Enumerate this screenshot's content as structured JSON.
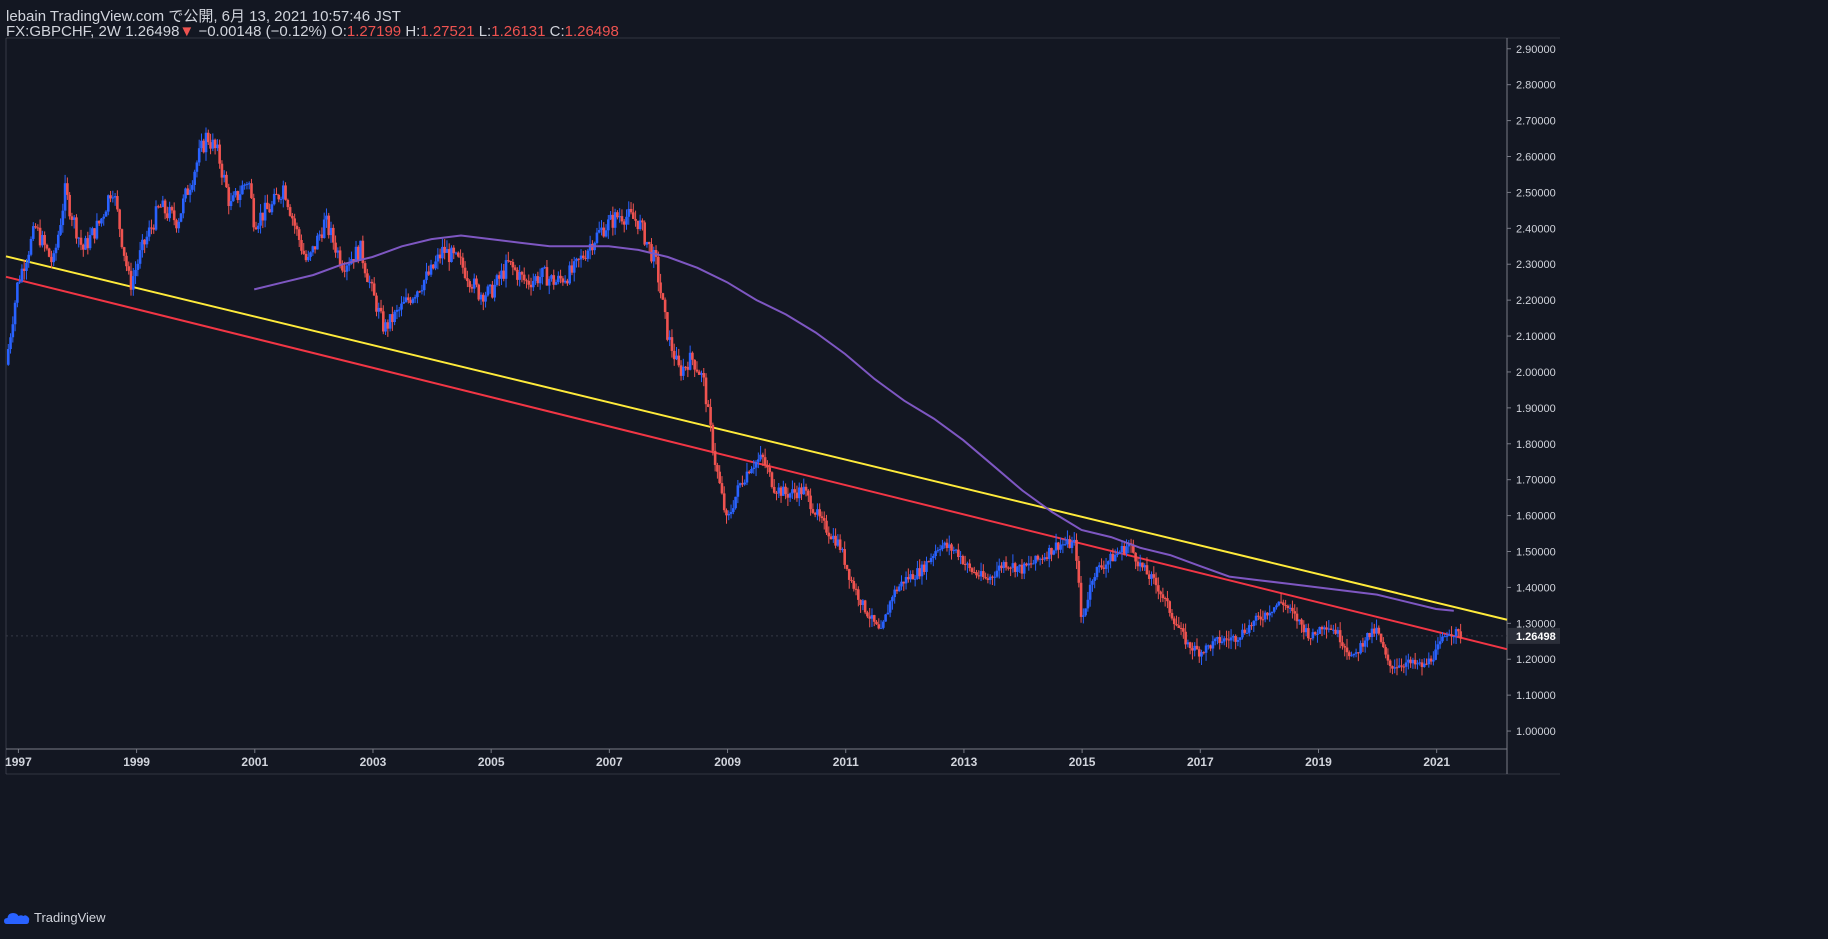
{
  "header": {
    "published": "lebain TradingView.com で公開, 6月 13, 2021 10:57:46 JST",
    "symbol": "FX:GBPCHF, 2W",
    "last": "1.26498",
    "change": "−0.00148 (−0.12%)",
    "o_label": "O:",
    "o_value": "1.27199",
    "h_label": "H:",
    "h_value": "1.27521",
    "l_label": "L:",
    "l_value": "1.26131",
    "c_label": "C:",
    "c_value": "1.26498"
  },
  "footer": {
    "brand": "TradingView"
  },
  "colors": {
    "background": "#131722",
    "up": "#2962ff",
    "down": "#ef5350",
    "ma": "#7e57c2",
    "trend_yellow": "#ffeb3b",
    "trend_red": "#f23645",
    "text": "#d1d4dc",
    "axis_line": "#787b86"
  },
  "chart_data": {
    "type": "candlestick",
    "interval": "2W",
    "symbol": "FX:GBPCHF",
    "xlim": [
      1996.8,
      2022.2
    ],
    "ylim": [
      0.95,
      2.93
    ],
    "x_ticks": [
      "1997",
      "1999",
      "2001",
      "2003",
      "2005",
      "2007",
      "2009",
      "2011",
      "2013",
      "2015",
      "2017",
      "2019",
      "2021"
    ],
    "y_ticks": [
      "2.90000",
      "2.80000",
      "2.70000",
      "2.60000",
      "2.50000",
      "2.40000",
      "2.30000",
      "2.20000",
      "2.10000",
      "2.00000",
      "1.90000",
      "1.80000",
      "1.70000",
      "1.60000",
      "1.50000",
      "1.40000",
      "1.30000",
      "1.20000",
      "1.10000",
      "1.00000"
    ],
    "last_price_label": "1.26498",
    "last_price": 1.26498,
    "price_path": [
      [
        1996.8,
        2.02
      ],
      [
        1997.0,
        2.25
      ],
      [
        1997.3,
        2.4
      ],
      [
        1997.6,
        2.3
      ],
      [
        1997.8,
        2.5
      ],
      [
        1998.1,
        2.34
      ],
      [
        1998.4,
        2.42
      ],
      [
        1998.6,
        2.52
      ],
      [
        1998.9,
        2.24
      ],
      [
        1999.1,
        2.34
      ],
      [
        1999.4,
        2.46
      ],
      [
        1999.7,
        2.42
      ],
      [
        2000.0,
        2.57
      ],
      [
        2000.2,
        2.66
      ],
      [
        2000.4,
        2.6
      ],
      [
        2000.6,
        2.46
      ],
      [
        2000.9,
        2.54
      ],
      [
        2001.0,
        2.42
      ],
      [
        2001.3,
        2.46
      ],
      [
        2001.5,
        2.52
      ],
      [
        2001.7,
        2.4
      ],
      [
        2001.9,
        2.3
      ],
      [
        2002.2,
        2.42
      ],
      [
        2002.5,
        2.3
      ],
      [
        2002.8,
        2.34
      ],
      [
        2003.0,
        2.22
      ],
      [
        2003.2,
        2.12
      ],
      [
        2003.5,
        2.18
      ],
      [
        2003.8,
        2.24
      ],
      [
        2004.0,
        2.28
      ],
      [
        2004.2,
        2.34
      ],
      [
        2004.5,
        2.3
      ],
      [
        2004.8,
        2.22
      ],
      [
        2005.0,
        2.22
      ],
      [
        2005.3,
        2.3
      ],
      [
        2005.6,
        2.25
      ],
      [
        2005.9,
        2.27
      ],
      [
        2006.1,
        2.25
      ],
      [
        2006.4,
        2.28
      ],
      [
        2006.7,
        2.36
      ],
      [
        2006.9,
        2.4
      ],
      [
        2007.2,
        2.44
      ],
      [
        2007.5,
        2.42
      ],
      [
        2007.8,
        2.3
      ],
      [
        2008.0,
        2.1
      ],
      [
        2008.2,
        2.0
      ],
      [
        2008.4,
        2.04
      ],
      [
        2008.6,
        1.98
      ],
      [
        2008.8,
        1.75
      ],
      [
        2009.0,
        1.58
      ],
      [
        2009.2,
        1.68
      ],
      [
        2009.4,
        1.74
      ],
      [
        2009.6,
        1.76
      ],
      [
        2009.8,
        1.68
      ],
      [
        2010.0,
        1.66
      ],
      [
        2010.3,
        1.67
      ],
      [
        2010.6,
        1.58
      ],
      [
        2010.9,
        1.52
      ],
      [
        2011.1,
        1.42
      ],
      [
        2011.3,
        1.35
      ],
      [
        2011.6,
        1.27
      ],
      [
        2011.8,
        1.38
      ],
      [
        2012.0,
        1.42
      ],
      [
        2012.3,
        1.45
      ],
      [
        2012.6,
        1.52
      ],
      [
        2012.9,
        1.5
      ],
      [
        2013.1,
        1.45
      ],
      [
        2013.4,
        1.42
      ],
      [
        2013.7,
        1.47
      ],
      [
        2014.0,
        1.45
      ],
      [
        2014.3,
        1.48
      ],
      [
        2014.6,
        1.52
      ],
      [
        2014.9,
        1.52
      ],
      [
        2015.0,
        1.3
      ],
      [
        2015.2,
        1.44
      ],
      [
        2015.5,
        1.48
      ],
      [
        2015.8,
        1.52
      ],
      [
        2016.0,
        1.46
      ],
      [
        2016.3,
        1.4
      ],
      [
        2016.6,
        1.3
      ],
      [
        2016.8,
        1.24
      ],
      [
        2017.0,
        1.22
      ],
      [
        2017.3,
        1.25
      ],
      [
        2017.6,
        1.26
      ],
      [
        2017.9,
        1.3
      ],
      [
        2018.2,
        1.34
      ],
      [
        2018.4,
        1.36
      ],
      [
        2018.7,
        1.3
      ],
      [
        2018.9,
        1.26
      ],
      [
        2019.1,
        1.3
      ],
      [
        2019.3,
        1.28
      ],
      [
        2019.6,
        1.2
      ],
      [
        2019.8,
        1.26
      ],
      [
        2020.0,
        1.28
      ],
      [
        2020.2,
        1.18
      ],
      [
        2020.5,
        1.19
      ],
      [
        2020.8,
        1.18
      ],
      [
        2021.0,
        1.22
      ],
      [
        2021.2,
        1.28
      ],
      [
        2021.45,
        1.265
      ]
    ],
    "moving_average": [
      [
        2001.0,
        2.23
      ],
      [
        2001.5,
        2.25
      ],
      [
        2002.0,
        2.27
      ],
      [
        2002.5,
        2.3
      ],
      [
        2003.0,
        2.32
      ],
      [
        2003.5,
        2.35
      ],
      [
        2004.0,
        2.37
      ],
      [
        2004.5,
        2.38
      ],
      [
        2005.0,
        2.37
      ],
      [
        2005.5,
        2.36
      ],
      [
        2006.0,
        2.35
      ],
      [
        2006.5,
        2.35
      ],
      [
        2007.0,
        2.35
      ],
      [
        2007.5,
        2.34
      ],
      [
        2008.0,
        2.32
      ],
      [
        2008.5,
        2.29
      ],
      [
        2009.0,
        2.25
      ],
      [
        2009.5,
        2.2
      ],
      [
        2010.0,
        2.16
      ],
      [
        2010.5,
        2.11
      ],
      [
        2011.0,
        2.05
      ],
      [
        2011.5,
        1.98
      ],
      [
        2012.0,
        1.92
      ],
      [
        2012.5,
        1.87
      ],
      [
        2013.0,
        1.81
      ],
      [
        2013.5,
        1.74
      ],
      [
        2014.0,
        1.67
      ],
      [
        2014.5,
        1.61
      ],
      [
        2015.0,
        1.56
      ],
      [
        2015.5,
        1.54
      ],
      [
        2016.0,
        1.51
      ],
      [
        2016.5,
        1.49
      ],
      [
        2017.0,
        1.46
      ],
      [
        2017.5,
        1.43
      ],
      [
        2018.0,
        1.42
      ],
      [
        2018.5,
        1.41
      ],
      [
        2019.0,
        1.4
      ],
      [
        2019.5,
        1.39
      ],
      [
        2020.0,
        1.38
      ],
      [
        2020.5,
        1.36
      ],
      [
        2021.0,
        1.34
      ],
      [
        2021.3,
        1.335
      ]
    ],
    "trendlines": [
      {
        "color": "#ffeb3b",
        "from": [
          1996.8,
          2.322
        ],
        "to": [
          2022.2,
          1.31
        ]
      },
      {
        "color": "#f23645",
        "from": [
          1996.8,
          2.265
        ],
        "to": [
          2022.2,
          1.228
        ]
      }
    ],
    "grid": false,
    "legend": "none"
  }
}
